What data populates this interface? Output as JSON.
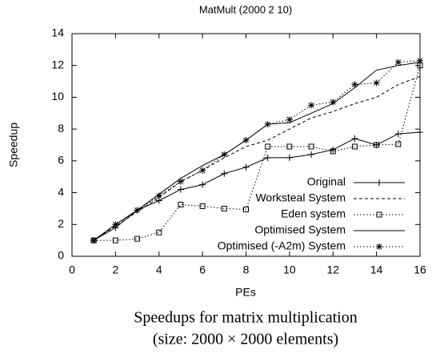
{
  "chart_data": {
    "type": "line",
    "title": "MatMult (2000 2 10)",
    "xlabel": "PEs",
    "ylabel": "Speedup",
    "caption": [
      "Speedups for matrix multiplication",
      "(size: 2000 × 2000 elements)"
    ],
    "x": [
      1,
      2,
      3,
      4,
      5,
      6,
      7,
      8,
      9,
      10,
      11,
      12,
      13,
      14,
      15,
      16
    ],
    "xlim": [
      0,
      16
    ],
    "xticks": [
      0,
      2,
      4,
      6,
      8,
      10,
      12,
      14,
      16
    ],
    "ylim": [
      0,
      14
    ],
    "yticks": [
      0,
      2,
      4,
      6,
      8,
      10,
      12,
      14
    ],
    "grid": false,
    "legend": "lower right",
    "series": [
      {
        "name": "Original",
        "color": "#000000",
        "dash": "solid",
        "marker": "plus",
        "values": [
          1.0,
          1.8,
          2.9,
          3.5,
          4.2,
          4.5,
          5.2,
          5.6,
          6.2,
          6.2,
          6.4,
          6.7,
          7.4,
          7.0,
          7.7,
          7.8
        ]
      },
      {
        "name": "Worksteal System",
        "color": "#000000",
        "dash": "dashed",
        "marker": null,
        "values": [
          1.0,
          1.9,
          2.8,
          3.7,
          4.7,
          5.4,
          6.2,
          6.9,
          7.3,
          8.0,
          8.7,
          9.1,
          9.6,
          10.0,
          10.8,
          11.3
        ]
      },
      {
        "name": "Eden system",
        "color": "#000000",
        "dash": "dotted",
        "marker": "square",
        "values": [
          1.0,
          1.0,
          1.1,
          1.5,
          3.25,
          3.15,
          3.0,
          2.95,
          6.9,
          6.9,
          6.9,
          6.6,
          6.9,
          7.0,
          7.05,
          12.0
        ]
      },
      {
        "name": "Optimised System",
        "color": "#000000",
        "dash": "solid",
        "marker": null,
        "values": [
          1.0,
          2.0,
          2.9,
          3.9,
          4.9,
          5.7,
          6.4,
          7.3,
          8.3,
          8.4,
          9.0,
          9.6,
          10.6,
          11.7,
          12.0,
          12.2
        ]
      },
      {
        "name": "Optimised (-A2m) System",
        "color": "#000000",
        "dash": "dotted",
        "marker": "star",
        "values": [
          1.0,
          2.0,
          2.9,
          3.8,
          4.7,
          5.4,
          6.4,
          7.3,
          8.3,
          8.6,
          9.5,
          9.7,
          10.8,
          10.9,
          12.2,
          12.3
        ]
      }
    ]
  }
}
